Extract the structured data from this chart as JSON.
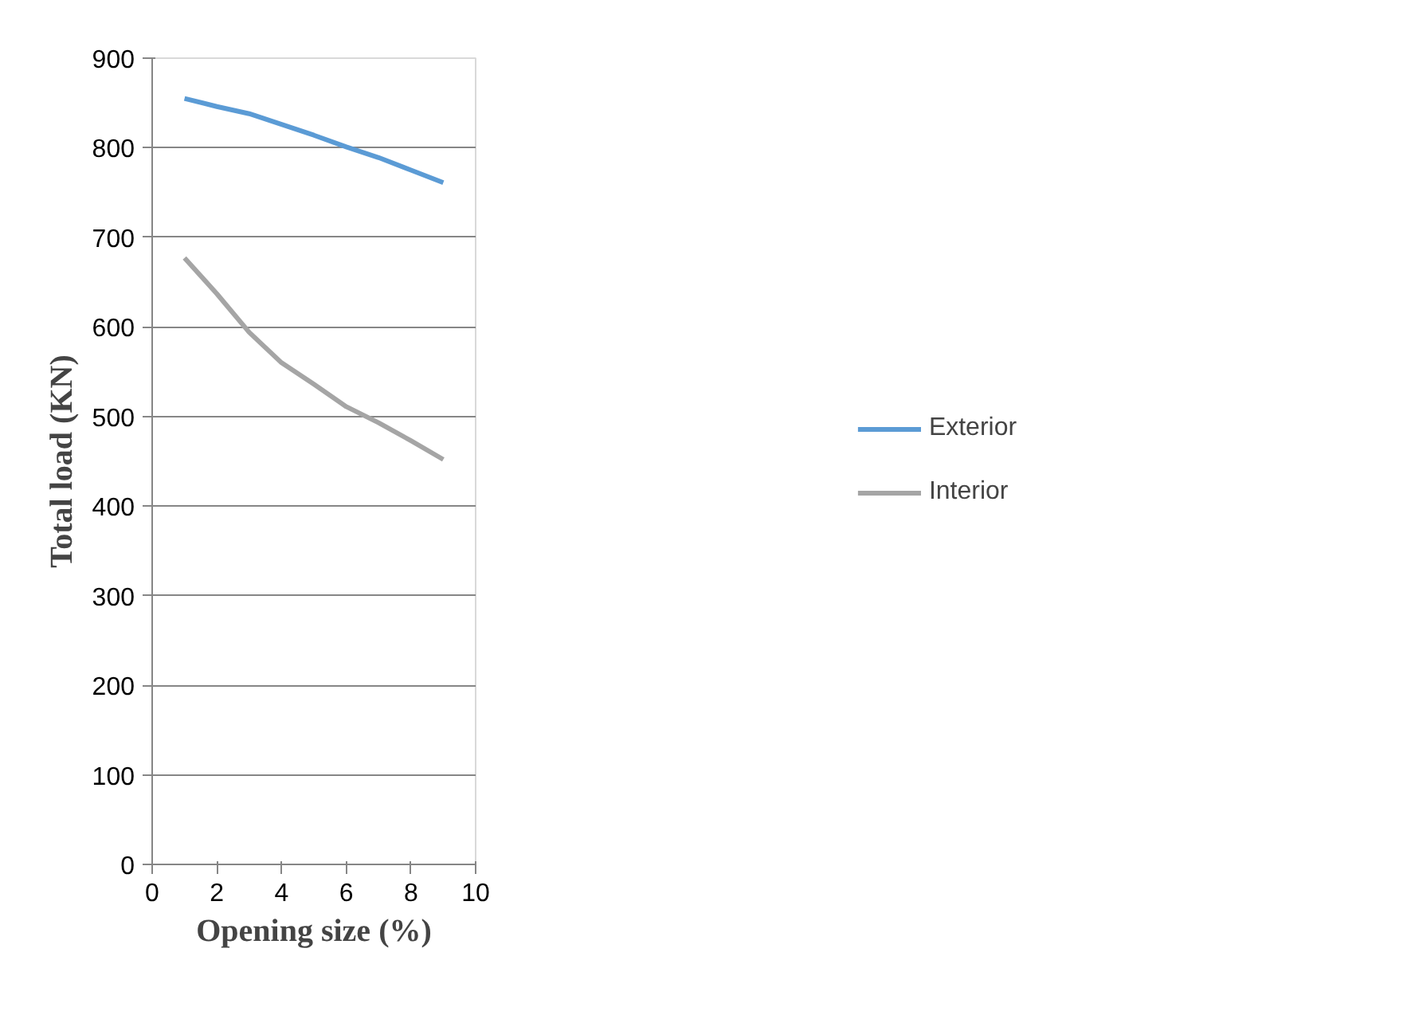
{
  "chart_data": {
    "type": "line",
    "xlabel": "Opening size (%)",
    "ylabel": "Total load (KN)",
    "x": [
      1,
      2,
      3,
      4,
      5,
      6,
      7,
      8,
      9
    ],
    "series": [
      {
        "name": "Exterior",
        "color": "#5b9bd5",
        "values": [
          855,
          846,
          838,
          826,
          814,
          801,
          789,
          775,
          761
        ]
      },
      {
        "name": "Interior",
        "color": "#a5a5a5",
        "values": [
          677,
          637,
          594,
          560,
          536,
          511,
          493,
          473,
          452
        ]
      }
    ],
    "xlim": [
      0,
      10
    ],
    "xticks": [
      0,
      2,
      4,
      6,
      8,
      10
    ],
    "ylim": [
      0,
      900
    ],
    "yticks": [
      0,
      100,
      200,
      300,
      400,
      500,
      600,
      700,
      800,
      900
    ],
    "grid": "y",
    "legend": "right",
    "marker": "none",
    "line_style": "solid"
  }
}
